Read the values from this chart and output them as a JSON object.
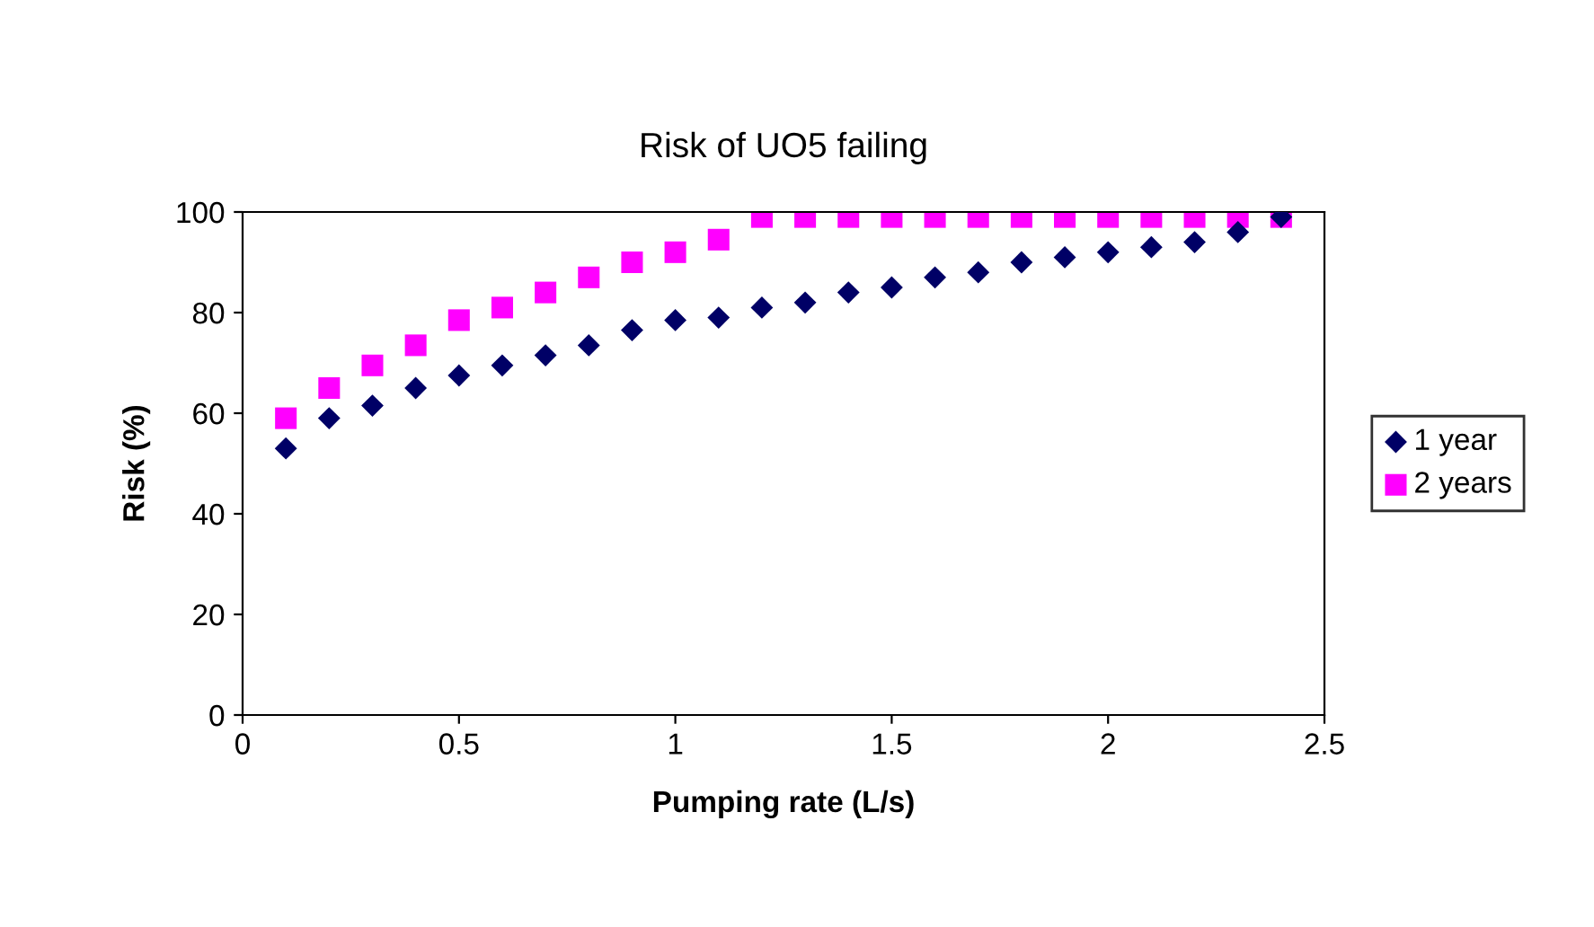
{
  "chart_data": {
    "type": "scatter",
    "title": "Risk of UO5 failing",
    "xlabel": "Pumping rate (L/s)",
    "ylabel": "Risk (%)",
    "x": [
      0.1,
      0.2,
      0.3,
      0.4,
      0.5,
      0.6,
      0.7,
      0.8,
      0.9,
      1.0,
      1.1,
      1.2,
      1.3,
      1.4,
      1.5,
      1.6,
      1.7,
      1.8,
      1.9,
      2.0,
      2.1,
      2.2,
      2.3,
      2.4
    ],
    "series": [
      {
        "name": "1 year",
        "color": "#000066",
        "marker": "diamond",
        "values": [
          53,
          59,
          61.5,
          65,
          67.5,
          69.5,
          71.5,
          73.5,
          76.5,
          78.5,
          79,
          81,
          82,
          84,
          85,
          87,
          88,
          90,
          91,
          92,
          93,
          94,
          96,
          99
        ]
      },
      {
        "name": "2 years",
        "color": "#ff00ff",
        "marker": "square",
        "values": [
          59,
          65,
          69.5,
          73.5,
          78.5,
          81,
          84,
          87,
          90,
          92,
          94.5,
          99,
          99,
          99,
          99,
          99,
          99,
          99,
          99,
          99,
          99,
          99,
          99,
          99
        ]
      }
    ],
    "xlim": [
      0,
      2.5
    ],
    "xticks": [
      0,
      0.5,
      1,
      1.5,
      2,
      2.5
    ],
    "ylim": [
      0,
      100
    ],
    "yticks": [
      0,
      20,
      40,
      60,
      80,
      100
    ],
    "grid": false,
    "legend": "right"
  }
}
